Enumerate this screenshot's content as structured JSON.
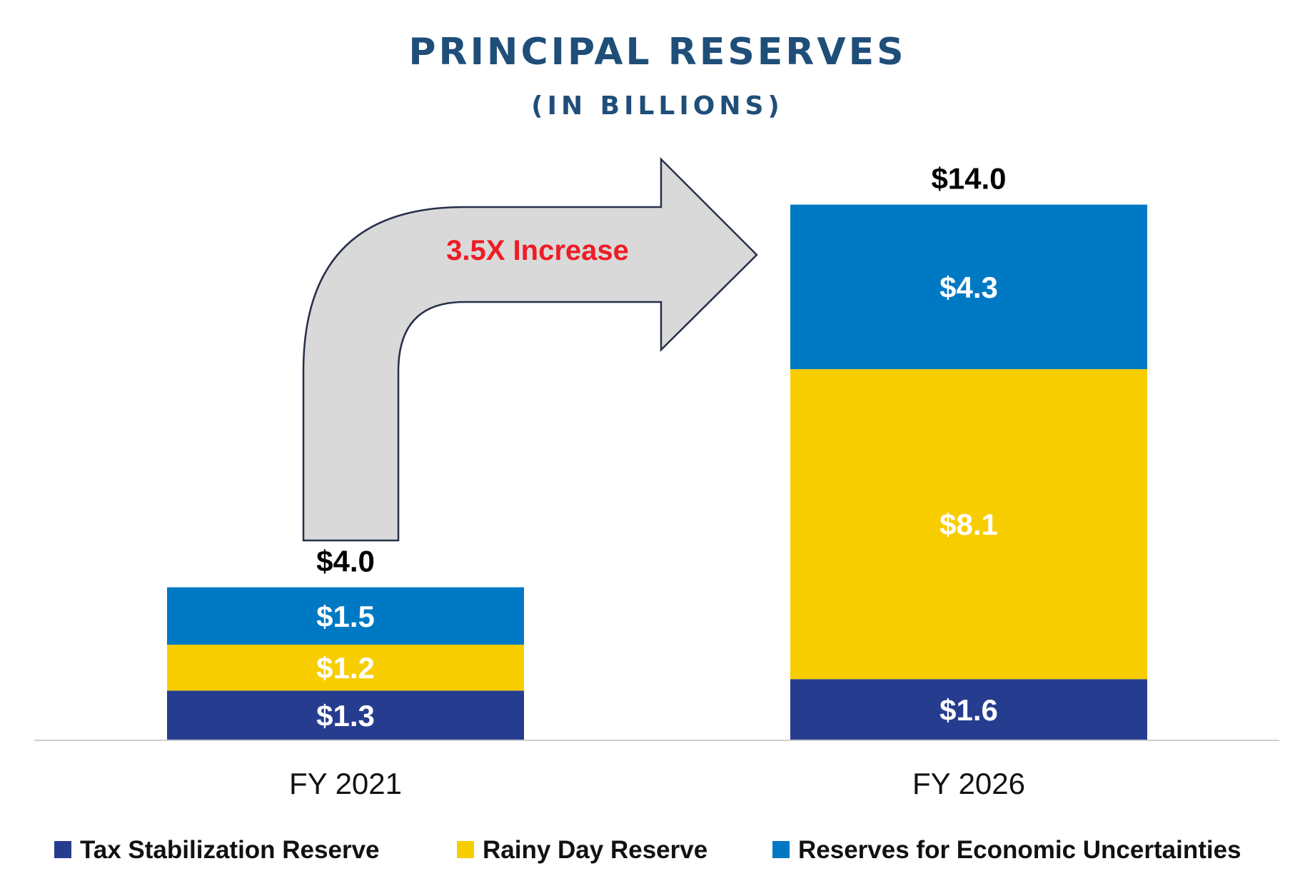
{
  "chart_data": {
    "type": "bar",
    "stacked": true,
    "title": "PRINCIPAL RESERVES",
    "subtitle": "(IN BILLIONS)",
    "categories": [
      "FY 2021",
      "FY 2026"
    ],
    "series": [
      {
        "name": "Tax Stabilization Reserve",
        "values": [
          1.3,
          1.6
        ],
        "labels": [
          "$1.3",
          "$1.6"
        ],
        "color": "#263d8f"
      },
      {
        "name": "Rainy Day Reserve",
        "values": [
          1.2,
          8.1
        ],
        "labels": [
          "$1.2",
          "$8.1"
        ],
        "color": "#f8cd00"
      },
      {
        "name": "Reserves for Economic Uncertainties",
        "values": [
          1.5,
          4.3
        ],
        "labels": [
          "$1.5",
          "$4.3"
        ],
        "color": "#0079c4"
      }
    ],
    "totals": [
      4.0,
      14.0
    ],
    "total_labels": [
      "$4.0",
      "$14.0"
    ],
    "annotation": {
      "text": "3.5X Increase",
      "color": "#ee1c25"
    },
    "ylim": [
      0,
      14
    ],
    "grid": false,
    "legend": "bottom"
  }
}
